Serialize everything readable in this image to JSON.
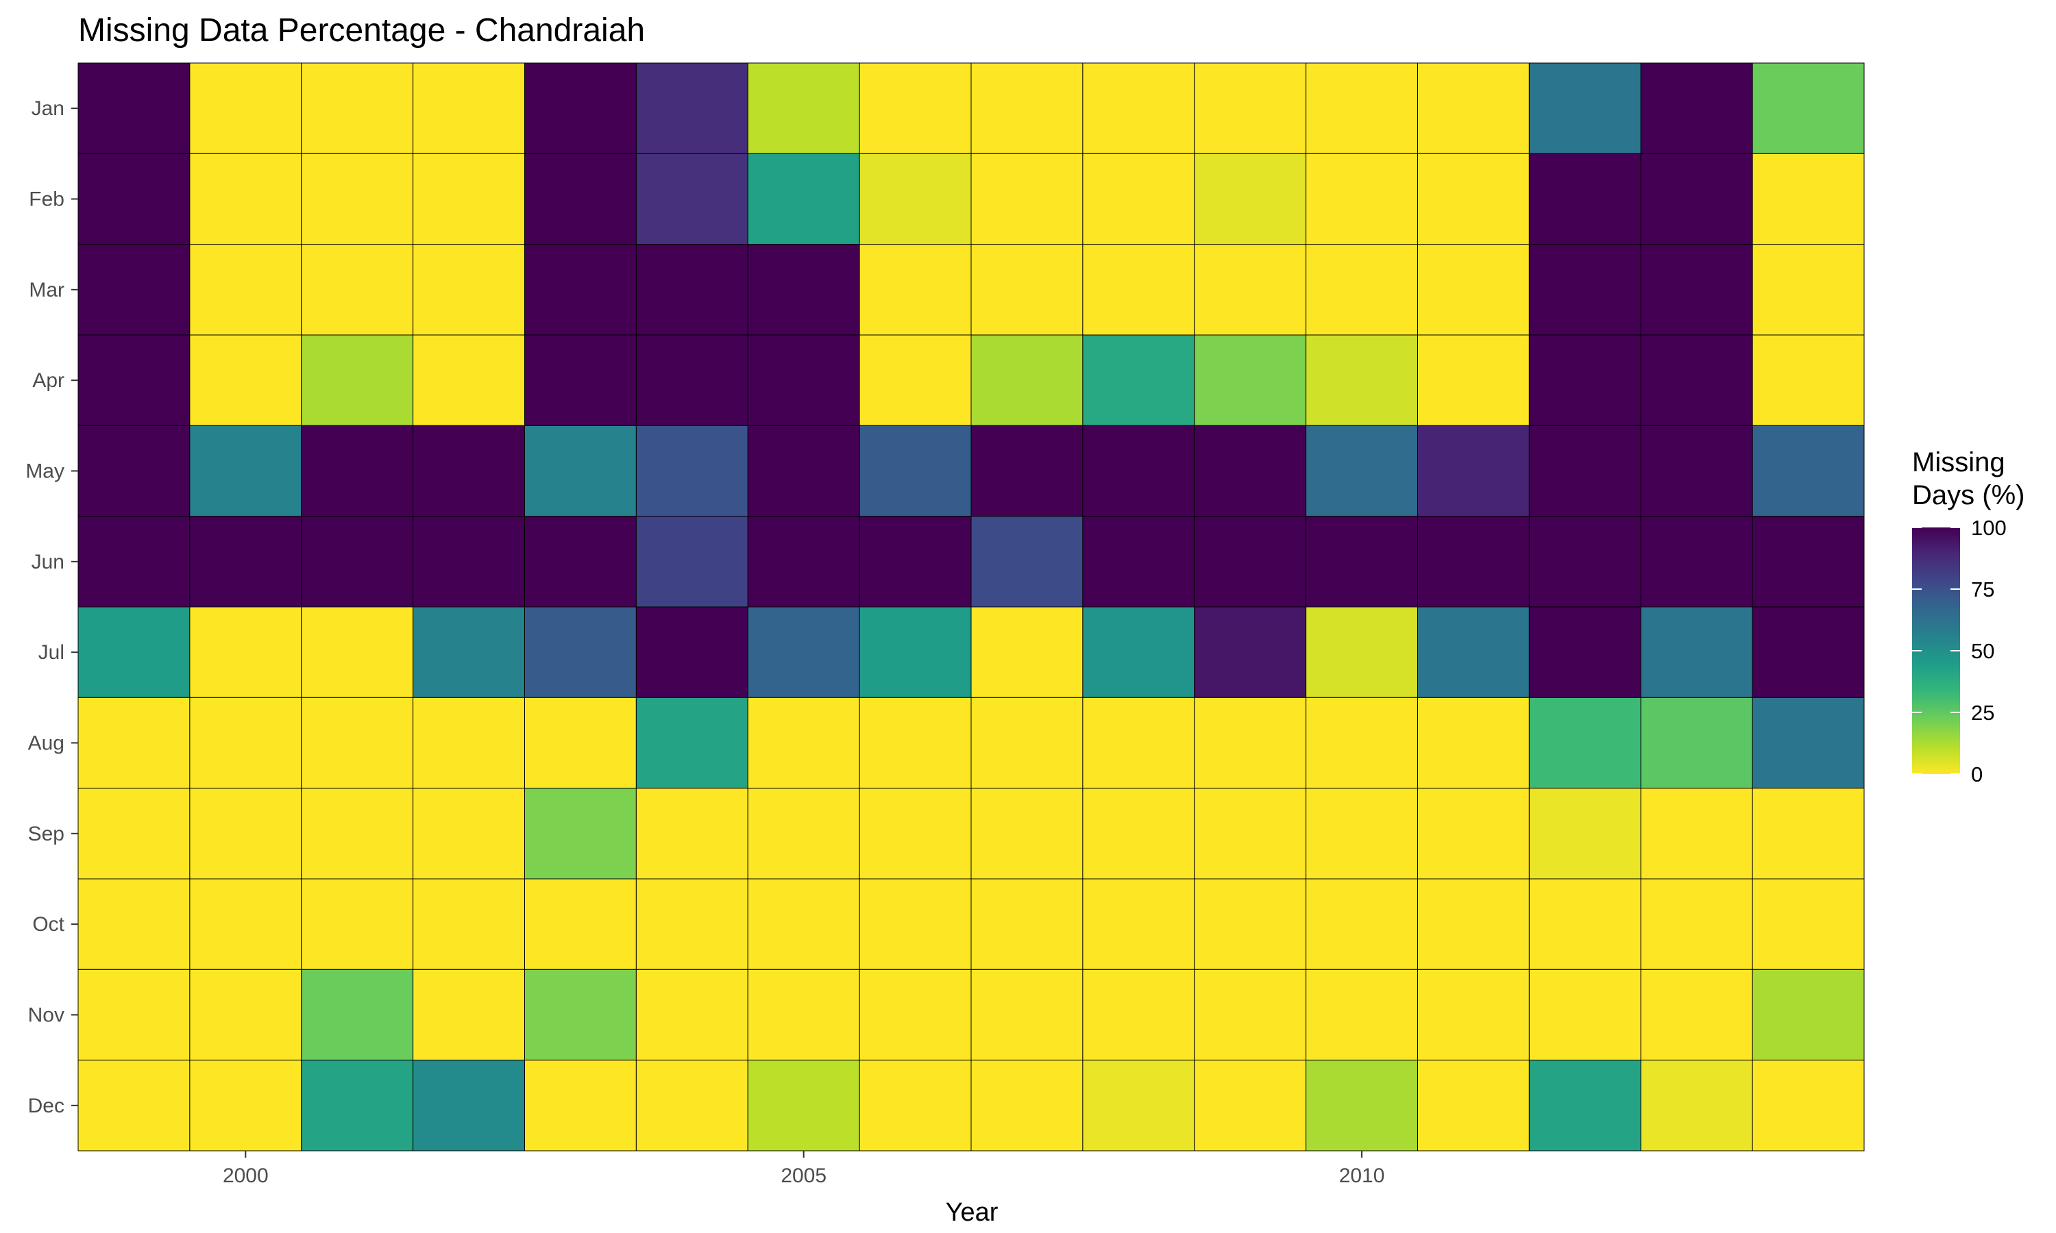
{
  "chart_data": {
    "type": "heatmap",
    "title": "Missing Data Percentage - Chandraiah",
    "xlabel": "Year",
    "ylabel": "",
    "x": [
      1999,
      2000,
      2001,
      2002,
      2003,
      2004,
      2005,
      2006,
      2007,
      2008,
      2009,
      2010,
      2011,
      2012,
      2013,
      2014
    ],
    "x_ticks": [
      "2000",
      "2005",
      "2010"
    ],
    "y": [
      "Jan",
      "Feb",
      "Mar",
      "Apr",
      "May",
      "Jun",
      "Jul",
      "Aug",
      "Sep",
      "Oct",
      "Nov",
      "Dec"
    ],
    "values": [
      [
        100,
        0,
        0,
        0,
        100,
        87,
        10,
        0,
        0,
        0,
        0,
        0,
        0,
        61,
        100,
        23
      ],
      [
        100,
        0,
        0,
        0,
        100,
        86,
        43,
        4,
        0,
        0,
        4,
        0,
        0,
        100,
        100,
        0
      ],
      [
        100,
        0,
        0,
        0,
        100,
        100,
        100,
        0,
        0,
        0,
        0,
        0,
        0,
        100,
        100,
        0
      ],
      [
        100,
        0,
        13,
        0,
        100,
        100,
        100,
        0,
        13,
        40,
        20,
        7,
        0,
        100,
        100,
        0
      ],
      [
        100,
        55,
        100,
        100,
        55,
        74,
        100,
        71,
        100,
        100,
        100,
        65,
        90,
        100,
        100,
        68
      ],
      [
        100,
        100,
        100,
        100,
        100,
        80,
        100,
        100,
        77,
        100,
        100,
        100,
        100,
        100,
        100,
        100
      ],
      [
        45,
        0,
        0,
        55,
        71,
        100,
        68,
        45,
        0,
        48,
        94,
        6,
        61,
        100,
        61,
        100
      ],
      [
        0,
        0,
        0,
        0,
        0,
        42,
        0,
        0,
        0,
        0,
        0,
        0,
        0,
        32,
        26,
        61
      ],
      [
        0,
        0,
        0,
        0,
        20,
        0,
        0,
        0,
        0,
        0,
        0,
        0,
        0,
        3,
        0,
        0
      ],
      [
        0,
        0,
        0,
        0,
        0,
        0,
        0,
        0,
        0,
        0,
        0,
        0,
        0,
        0,
        0,
        0
      ],
      [
        0,
        0,
        23,
        0,
        20,
        0,
        0,
        0,
        0,
        0,
        0,
        0,
        0,
        0,
        0,
        13
      ],
      [
        0,
        0,
        42,
        52,
        0,
        0,
        10,
        0,
        0,
        3,
        0,
        13,
        0,
        42,
        3,
        0
      ]
    ],
    "color_scale": {
      "name": "viridis-reversed",
      "min": 0,
      "max": 100,
      "stops": [
        "#FDE725",
        "#B5DE2B",
        "#6ECE58",
        "#35B779",
        "#1F9E89",
        "#26828E",
        "#31688E",
        "#3E4989",
        "#482878",
        "#440154"
      ]
    },
    "legend": {
      "title_lines": [
        "Missing",
        "Days (%)"
      ],
      "ticks": [
        0,
        25,
        50,
        75,
        100
      ],
      "placement": "right"
    },
    "grid": false
  }
}
